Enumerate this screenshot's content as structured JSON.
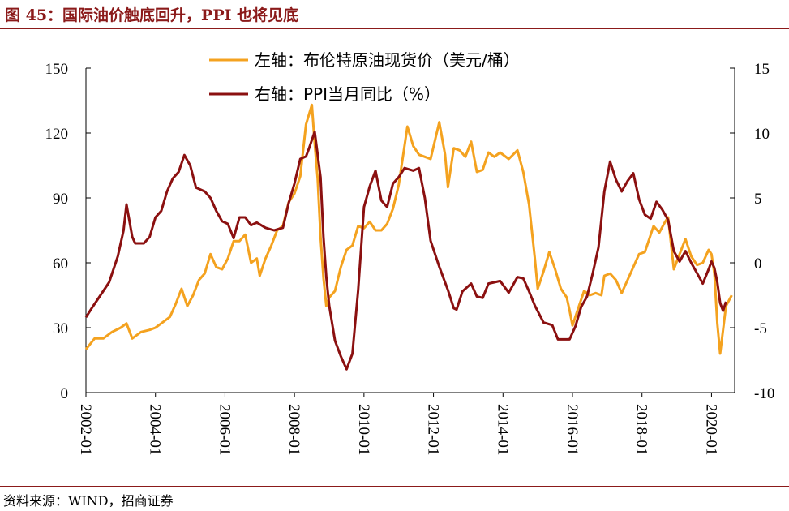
{
  "figure": {
    "title": "图 45：国际油价触底回升，PPI 也将见底",
    "source": "资料来源：WIND，招商证券"
  },
  "colors": {
    "brand": "#8B1A1A",
    "oil": "#F4A21F",
    "ppi": "#8B1010"
  },
  "chart_data": {
    "type": "line",
    "title": "",
    "legend_position": "top-center",
    "grid": false,
    "x_axis": {
      "tick_labels": [
        "2002-01",
        "2004-01",
        "2006-01",
        "2008-01",
        "2010-01",
        "2012-01",
        "2014-01",
        "2016-01",
        "2018-01",
        "2020-01"
      ],
      "range": [
        "2002-01",
        "2020-09"
      ]
    },
    "y_left": {
      "range": [
        0,
        150
      ],
      "ticks": [
        0,
        30,
        60,
        90,
        120,
        150
      ]
    },
    "y_right": {
      "range": [
        -10,
        15
      ],
      "ticks": [
        -10,
        -5,
        0,
        5,
        10,
        15
      ]
    },
    "series": [
      {
        "name": "左轴：布伦特原油现货价（美元/桶）",
        "axis": "left",
        "points": [
          [
            "2002-01",
            20
          ],
          [
            "2002-04",
            25
          ],
          [
            "2002-07",
            25
          ],
          [
            "2002-10",
            28
          ],
          [
            "2003-01",
            30
          ],
          [
            "2003-03",
            32
          ],
          [
            "2003-05",
            25
          ],
          [
            "2003-08",
            28
          ],
          [
            "2003-11",
            29
          ],
          [
            "2004-01",
            30
          ],
          [
            "2004-03",
            32
          ],
          [
            "2004-06",
            35
          ],
          [
            "2004-08",
            41
          ],
          [
            "2004-10",
            48
          ],
          [
            "2004-12",
            40
          ],
          [
            "2005-02",
            45
          ],
          [
            "2005-04",
            52
          ],
          [
            "2005-06",
            55
          ],
          [
            "2005-08",
            64
          ],
          [
            "2005-10",
            58
          ],
          [
            "2005-12",
            57
          ],
          [
            "2006-02",
            62
          ],
          [
            "2006-04",
            70
          ],
          [
            "2006-06",
            70
          ],
          [
            "2006-08",
            73
          ],
          [
            "2006-10",
            60
          ],
          [
            "2006-12",
            62
          ],
          [
            "2007-01",
            54
          ],
          [
            "2007-03",
            62
          ],
          [
            "2007-05",
            68
          ],
          [
            "2007-07",
            75
          ],
          [
            "2007-09",
            77
          ],
          [
            "2007-11",
            88
          ],
          [
            "2008-01",
            92
          ],
          [
            "2008-03",
            100
          ],
          [
            "2008-05",
            124
          ],
          [
            "2008-07",
            133
          ],
          [
            "2008-08",
            115
          ],
          [
            "2008-09",
            99
          ],
          [
            "2008-10",
            72
          ],
          [
            "2008-11",
            53
          ],
          [
            "2008-12",
            40
          ],
          [
            "2009-01",
            44
          ],
          [
            "2009-03",
            47
          ],
          [
            "2009-05",
            58
          ],
          [
            "2009-07",
            66
          ],
          [
            "2009-09",
            68
          ],
          [
            "2009-11",
            77
          ],
          [
            "2010-01",
            76
          ],
          [
            "2010-03",
            79
          ],
          [
            "2010-05",
            75
          ],
          [
            "2010-07",
            75
          ],
          [
            "2010-09",
            78
          ],
          [
            "2010-11",
            85
          ],
          [
            "2011-01",
            96
          ],
          [
            "2011-04",
            123
          ],
          [
            "2011-06",
            114
          ],
          [
            "2011-08",
            110
          ],
          [
            "2011-10",
            109
          ],
          [
            "2011-12",
            108
          ],
          [
            "2012-03",
            125
          ],
          [
            "2012-05",
            110
          ],
          [
            "2012-06",
            95
          ],
          [
            "2012-08",
            113
          ],
          [
            "2012-10",
            112
          ],
          [
            "2012-12",
            109
          ],
          [
            "2013-02",
            116
          ],
          [
            "2013-04",
            102
          ],
          [
            "2013-06",
            103
          ],
          [
            "2013-08",
            111
          ],
          [
            "2013-10",
            109
          ],
          [
            "2013-12",
            111
          ],
          [
            "2014-03",
            108
          ],
          [
            "2014-06",
            112
          ],
          [
            "2014-08",
            102
          ],
          [
            "2014-10",
            87
          ],
          [
            "2014-12",
            62
          ],
          [
            "2015-01",
            48
          ],
          [
            "2015-03",
            56
          ],
          [
            "2015-05",
            65
          ],
          [
            "2015-07",
            57
          ],
          [
            "2015-09",
            48
          ],
          [
            "2015-11",
            44
          ],
          [
            "2015-12",
            38
          ],
          [
            "2016-01",
            31
          ],
          [
            "2016-03",
            39
          ],
          [
            "2016-05",
            47
          ],
          [
            "2016-07",
            45
          ],
          [
            "2016-09",
            46
          ],
          [
            "2016-11",
            45
          ],
          [
            "2016-12",
            54
          ],
          [
            "2017-02",
            55
          ],
          [
            "2017-04",
            52
          ],
          [
            "2017-06",
            46
          ],
          [
            "2017-08",
            52
          ],
          [
            "2017-10",
            58
          ],
          [
            "2017-12",
            64
          ],
          [
            "2018-02",
            65
          ],
          [
            "2018-05",
            77
          ],
          [
            "2018-07",
            74
          ],
          [
            "2018-09",
            79
          ],
          [
            "2018-10",
            81
          ],
          [
            "2018-12",
            57
          ],
          [
            "2019-02",
            64
          ],
          [
            "2019-04",
            71
          ],
          [
            "2019-06",
            63
          ],
          [
            "2019-08",
            59
          ],
          [
            "2019-10",
            60
          ],
          [
            "2019-12",
            66
          ],
          [
            "2020-01",
            64
          ],
          [
            "2020-02",
            55
          ],
          [
            "2020-03",
            32
          ],
          [
            "2020-04",
            18
          ],
          [
            "2020-05",
            29
          ],
          [
            "2020-06",
            40
          ],
          [
            "2020-08",
            45
          ]
        ]
      },
      {
        "name": "右轴：PPI当月同比（%）",
        "axis": "right",
        "points": [
          [
            "2002-01",
            -4.2
          ],
          [
            "2002-03",
            -3.5
          ],
          [
            "2002-06",
            -2.5
          ],
          [
            "2002-09",
            -1.5
          ],
          [
            "2002-12",
            0.5
          ],
          [
            "2003-02",
            2.5
          ],
          [
            "2003-03",
            4.5
          ],
          [
            "2003-05",
            2.0
          ],
          [
            "2003-06",
            1.5
          ],
          [
            "2003-09",
            1.5
          ],
          [
            "2003-11",
            2.0
          ],
          [
            "2004-01",
            3.5
          ],
          [
            "2004-03",
            4.0
          ],
          [
            "2004-05",
            5.5
          ],
          [
            "2004-07",
            6.5
          ],
          [
            "2004-09",
            7.0
          ],
          [
            "2004-11",
            8.3
          ],
          [
            "2005-01",
            7.5
          ],
          [
            "2005-03",
            5.8
          ],
          [
            "2005-06",
            5.5
          ],
          [
            "2005-08",
            5.0
          ],
          [
            "2005-10",
            4.0
          ],
          [
            "2005-12",
            3.2
          ],
          [
            "2006-02",
            3.0
          ],
          [
            "2006-04",
            1.9
          ],
          [
            "2006-06",
            3.5
          ],
          [
            "2006-08",
            3.5
          ],
          [
            "2006-10",
            2.9
          ],
          [
            "2006-12",
            3.1
          ],
          [
            "2007-03",
            2.7
          ],
          [
            "2007-06",
            2.5
          ],
          [
            "2007-09",
            2.7
          ],
          [
            "2007-11",
            4.6
          ],
          [
            "2008-01",
            6.1
          ],
          [
            "2008-03",
            8.0
          ],
          [
            "2008-05",
            8.2
          ],
          [
            "2008-06",
            8.8
          ],
          [
            "2008-08",
            10.1
          ],
          [
            "2008-10",
            6.6
          ],
          [
            "2008-11",
            2.0
          ],
          [
            "2008-12",
            -1.1
          ],
          [
            "2009-01",
            -3.3
          ],
          [
            "2009-03",
            -6.0
          ],
          [
            "2009-05",
            -7.2
          ],
          [
            "2009-07",
            -8.2
          ],
          [
            "2009-09",
            -7.0
          ],
          [
            "2009-11",
            -2.1
          ],
          [
            "2010-01",
            4.3
          ],
          [
            "2010-03",
            5.9
          ],
          [
            "2010-05",
            7.1
          ],
          [
            "2010-07",
            4.8
          ],
          [
            "2010-09",
            4.3
          ],
          [
            "2010-11",
            6.1
          ],
          [
            "2011-01",
            6.6
          ],
          [
            "2011-03",
            7.3
          ],
          [
            "2011-06",
            7.1
          ],
          [
            "2011-08",
            7.3
          ],
          [
            "2011-10",
            5.0
          ],
          [
            "2011-12",
            1.7
          ],
          [
            "2012-03",
            -0.3
          ],
          [
            "2012-06",
            -2.1
          ],
          [
            "2012-08",
            -3.5
          ],
          [
            "2012-09",
            -3.6
          ],
          [
            "2012-11",
            -2.2
          ],
          [
            "2013-02",
            -1.6
          ],
          [
            "2013-04",
            -2.6
          ],
          [
            "2013-06",
            -2.7
          ],
          [
            "2013-08",
            -1.6
          ],
          [
            "2013-10",
            -1.5
          ],
          [
            "2013-12",
            -1.4
          ],
          [
            "2014-03",
            -2.3
          ],
          [
            "2014-06",
            -1.1
          ],
          [
            "2014-08",
            -1.2
          ],
          [
            "2014-10",
            -2.2
          ],
          [
            "2014-12",
            -3.3
          ],
          [
            "2015-03",
            -4.6
          ],
          [
            "2015-06",
            -4.8
          ],
          [
            "2015-08",
            -5.9
          ],
          [
            "2015-10",
            -5.9
          ],
          [
            "2015-12",
            -5.9
          ],
          [
            "2016-02",
            -4.9
          ],
          [
            "2016-04",
            -3.4
          ],
          [
            "2016-06",
            -2.6
          ],
          [
            "2016-08",
            -0.8
          ],
          [
            "2016-10",
            1.2
          ],
          [
            "2016-12",
            5.5
          ],
          [
            "2017-02",
            7.8
          ],
          [
            "2017-04",
            6.4
          ],
          [
            "2017-06",
            5.5
          ],
          [
            "2017-08",
            6.3
          ],
          [
            "2017-10",
            6.9
          ],
          [
            "2017-12",
            4.9
          ],
          [
            "2018-02",
            3.7
          ],
          [
            "2018-04",
            3.4
          ],
          [
            "2018-06",
            4.7
          ],
          [
            "2018-08",
            4.1
          ],
          [
            "2018-10",
            3.3
          ],
          [
            "2018-12",
            0.9
          ],
          [
            "2019-02",
            0.1
          ],
          [
            "2019-04",
            0.9
          ],
          [
            "2019-06",
            0.0
          ],
          [
            "2019-08",
            -0.8
          ],
          [
            "2019-10",
            -1.6
          ],
          [
            "2019-12",
            -0.5
          ],
          [
            "2020-01",
            0.1
          ],
          [
            "2020-02",
            -0.4
          ],
          [
            "2020-03",
            -1.5
          ],
          [
            "2020-04",
            -3.1
          ],
          [
            "2020-05",
            -3.7
          ],
          [
            "2020-06",
            -3.0
          ]
        ]
      }
    ]
  }
}
